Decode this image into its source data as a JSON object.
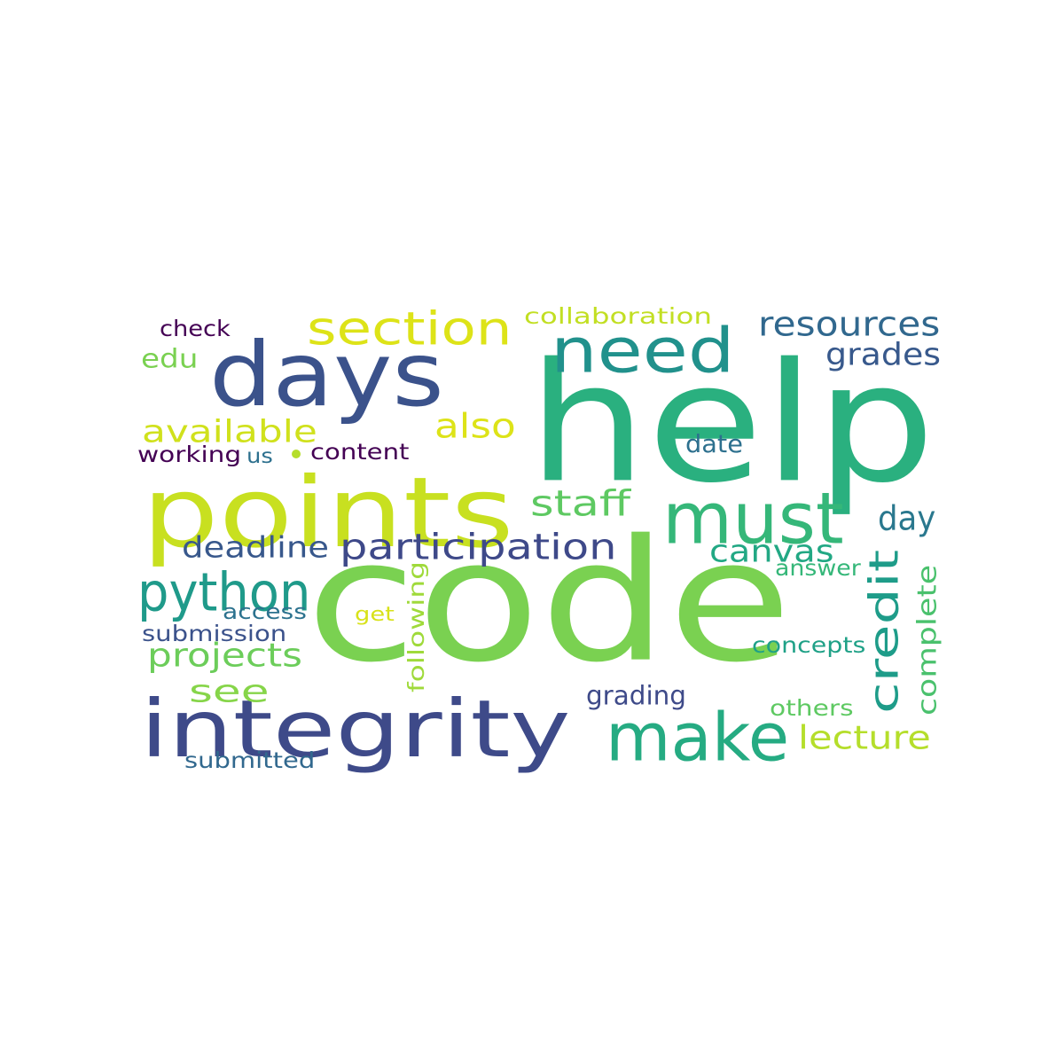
{
  "words": [
    {
      "text": "code",
      "color": "#7ad151"
    },
    {
      "text": "help",
      "color": "#2ab07f"
    },
    {
      "text": "points",
      "color": "#c8e020"
    },
    {
      "text": "integrity",
      "color": "#3e4a89"
    },
    {
      "text": "days",
      "color": "#3b528b"
    },
    {
      "text": "must",
      "color": "#35b779"
    },
    {
      "text": "make",
      "color": "#25ab82"
    },
    {
      "text": "need",
      "color": "#21918c"
    },
    {
      "text": "section",
      "color": "#dde318"
    },
    {
      "text": "python",
      "color": "#1f9a8a"
    },
    {
      "text": "participation",
      "color": "#3e4989"
    },
    {
      "text": "credit",
      "color": "#1e9c89"
    },
    {
      "text": "available",
      "color": "#d0e11c"
    },
    {
      "text": "also",
      "color": "#dde318"
    },
    {
      "text": "staff",
      "color": "#5ec962"
    },
    {
      "text": "resources",
      "color": "#31688e"
    },
    {
      "text": "grades",
      "color": "#38598c"
    },
    {
      "text": "deadline",
      "color": "#38588c"
    },
    {
      "text": "canvas",
      "color": "#22a884"
    },
    {
      "text": "projects",
      "color": "#6ccd5a"
    },
    {
      "text": "complete",
      "color": "#4ac16d"
    },
    {
      "text": "lecture",
      "color": "#b5de2b"
    },
    {
      "text": "day",
      "color": "#2a788e"
    },
    {
      "text": "see",
      "color": "#86d549"
    },
    {
      "text": "collaboration",
      "color": "#c2df23"
    },
    {
      "text": "edu",
      "color": "#7ad151"
    },
    {
      "text": "check",
      "color": "#440154"
    },
    {
      "text": "working",
      "color": "#440154"
    },
    {
      "text": "us",
      "color": "#2d708e"
    },
    {
      "text": "content",
      "color": "#440154"
    },
    {
      "text": "date",
      "color": "#2d708e"
    },
    {
      "text": "answer",
      "color": "#35b779"
    },
    {
      "text": "access",
      "color": "#2c728e"
    },
    {
      "text": "get",
      "color": "#d8e219"
    },
    {
      "text": "submission",
      "color": "#3b528b"
    },
    {
      "text": "following",
      "color": "#9fda3a"
    },
    {
      "text": "concepts",
      "color": "#1fa187"
    },
    {
      "text": "grading",
      "color": "#3e4a89"
    },
    {
      "text": "others",
      "color": "#5ec962"
    },
    {
      "text": "submitted",
      "color": "#31688e"
    }
  ],
  "dot_color": "#b5de2b"
}
